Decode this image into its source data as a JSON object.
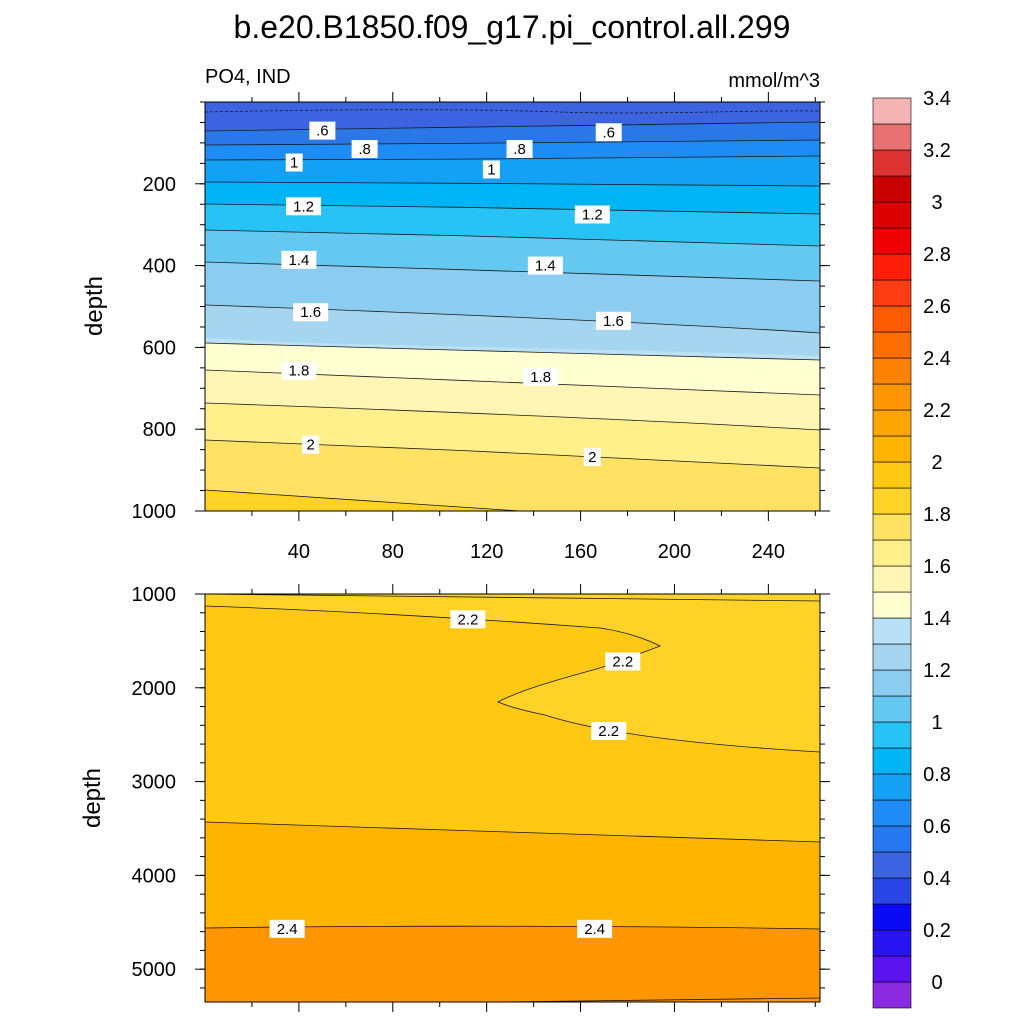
{
  "figure": {
    "title": "b.e20.B1850.f09_g17.pi_control.all.299",
    "left_subtitle": "PO4, IND",
    "right_subtitle": "mmol/m^3"
  },
  "chart_data": [
    {
      "type": "contour",
      "panel": "upper",
      "ylabel": "depth",
      "ylim": [
        1000,
        0
      ],
      "xlim": [
        0,
        262
      ],
      "xticks": [
        40,
        80,
        120,
        160,
        200,
        240
      ],
      "yticks": [
        200,
        400,
        600,
        800,
        1000
      ],
      "contour_labels": [
        {
          "text": ".6",
          "x": 50,
          "y": 70
        },
        {
          "text": ".8",
          "x": 68,
          "y": 115
        },
        {
          "text": "1",
          "x": 38,
          "y": 148
        },
        {
          "text": "1.2",
          "x": 42,
          "y": 255
        },
        {
          "text": "1.4",
          "x": 40,
          "y": 386
        },
        {
          "text": "1.6",
          "x": 45,
          "y": 514
        },
        {
          "text": "1.8",
          "x": 40,
          "y": 657
        },
        {
          "text": "2",
          "x": 45,
          "y": 838
        },
        {
          "text": ".6",
          "x": 172,
          "y": 74
        },
        {
          "text": ".8",
          "x": 134,
          "y": 115
        },
        {
          "text": "1",
          "x": 122,
          "y": 165
        },
        {
          "text": "1.2",
          "x": 165,
          "y": 275
        },
        {
          "text": "1.4",
          "x": 145,
          "y": 400
        },
        {
          "text": "1.6",
          "x": 174,
          "y": 535
        },
        {
          "text": "1.8",
          "x": 143,
          "y": 672
        },
        {
          "text": "2",
          "x": 165,
          "y": 868
        }
      ]
    },
    {
      "type": "contour",
      "panel": "lower",
      "ylabel": "depth",
      "ylim": [
        5350,
        1000
      ],
      "xlim": [
        0,
        262
      ],
      "xticks": [
        40,
        80,
        120,
        160,
        200,
        240
      ],
      "yticks": [
        1000,
        2000,
        3000,
        4000,
        5000
      ],
      "contour_labels": [
        {
          "text": "2.2",
          "x": 112,
          "y": 1270
        },
        {
          "text": "2.2",
          "x": 178,
          "y": 1720
        },
        {
          "text": "2.2",
          "x": 172,
          "y": 2460
        },
        {
          "text": "2.4",
          "x": 35,
          "y": 4570
        },
        {
          "text": "2.4",
          "x": 166,
          "y": 4570
        }
      ]
    }
  ],
  "colorbar": {
    "labels": [
      "0",
      "0.2",
      "0.4",
      "0.6",
      "0.8",
      "1",
      "1.2",
      "1.4",
      "1.6",
      "1.8",
      "2",
      "2.2",
      "2.4",
      "2.6",
      "2.8",
      "3",
      "3.2",
      "3.4"
    ],
    "colors": [
      "#8a2be2",
      "#5a14f0",
      "#2814f0",
      "#0a0af5",
      "#2a46e6",
      "#3c64e1",
      "#2878f0",
      "#1e8cf5",
      "#14a0f5",
      "#00b4f5",
      "#28c3f5",
      "#64c8f0",
      "#8cccf0",
      "#a5d5ef",
      "#b9e1f5",
      "#ffffd2",
      "#fff5b4",
      "#fff08c",
      "#ffe164",
      "#ffd228",
      "#ffc814",
      "#ffb400",
      "#ffa500",
      "#ff9600",
      "#ff8200",
      "#ff6e00",
      "#ff5a00",
      "#ff3c14",
      "#ff1e0a",
      "#f00000",
      "#dc0000",
      "#c80000",
      "#dc3232",
      "#e87070",
      "#f5b4b4"
    ]
  }
}
